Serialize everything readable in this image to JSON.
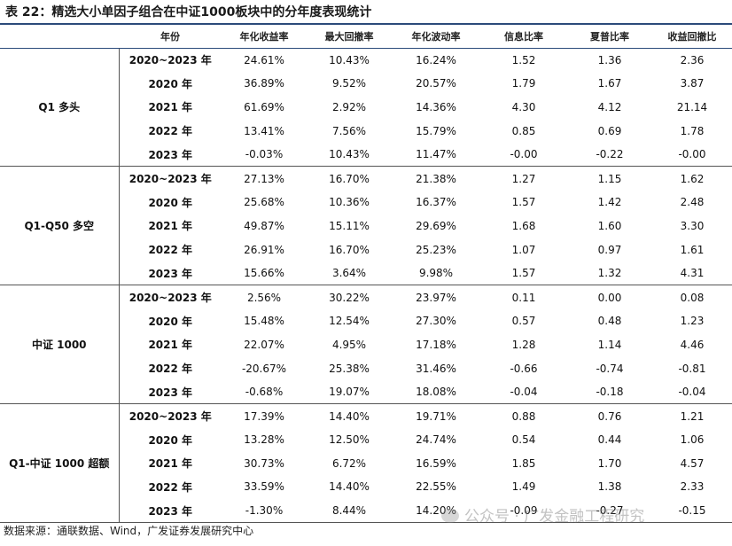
{
  "title": "表 22：精选大小单因子组合在中证1000板块中的分年度表现统计",
  "columns": [
    "",
    "年份",
    "年化收益率",
    "最大回撤率",
    "年化波动率",
    "信息比率",
    "夏普比率",
    "收益回撤比"
  ],
  "groups": [
    {
      "name": "Q1 多头",
      "rows": [
        {
          "year": "2020~2023 年",
          "cells": [
            "24.61%",
            "10.43%",
            "16.24%",
            "1.52",
            "1.36",
            "2.36"
          ]
        },
        {
          "year": "2020 年",
          "cells": [
            "36.89%",
            "9.52%",
            "20.57%",
            "1.79",
            "1.67",
            "3.87"
          ]
        },
        {
          "year": "2021 年",
          "cells": [
            "61.69%",
            "2.92%",
            "14.36%",
            "4.30",
            "4.12",
            "21.14"
          ]
        },
        {
          "year": "2022 年",
          "cells": [
            "13.41%",
            "7.56%",
            "15.79%",
            "0.85",
            "0.69",
            "1.78"
          ]
        },
        {
          "year": "2023 年",
          "cells": [
            "-0.03%",
            "10.43%",
            "11.47%",
            "-0.00",
            "-0.22",
            "-0.00"
          ]
        }
      ]
    },
    {
      "name": "Q1-Q50 多空",
      "rows": [
        {
          "year": "2020~2023 年",
          "cells": [
            "27.13%",
            "16.70%",
            "21.38%",
            "1.27",
            "1.15",
            "1.62"
          ]
        },
        {
          "year": "2020 年",
          "cells": [
            "25.68%",
            "10.36%",
            "16.37%",
            "1.57",
            "1.42",
            "2.48"
          ]
        },
        {
          "year": "2021 年",
          "cells": [
            "49.87%",
            "15.11%",
            "29.69%",
            "1.68",
            "1.60",
            "3.30"
          ]
        },
        {
          "year": "2022 年",
          "cells": [
            "26.91%",
            "16.70%",
            "25.23%",
            "1.07",
            "0.97",
            "1.61"
          ]
        },
        {
          "year": "2023 年",
          "cells": [
            "15.66%",
            "3.64%",
            "9.98%",
            "1.57",
            "1.32",
            "4.31"
          ]
        }
      ]
    },
    {
      "name": "中证 1000",
      "rows": [
        {
          "year": "2020~2023 年",
          "cells": [
            "2.56%",
            "30.22%",
            "23.97%",
            "0.11",
            "0.00",
            "0.08"
          ]
        },
        {
          "year": "2020 年",
          "cells": [
            "15.48%",
            "12.54%",
            "27.30%",
            "0.57",
            "0.48",
            "1.23"
          ]
        },
        {
          "year": "2021 年",
          "cells": [
            "22.07%",
            "4.95%",
            "17.18%",
            "1.28",
            "1.14",
            "4.46"
          ]
        },
        {
          "year": "2022 年",
          "cells": [
            "-20.67%",
            "25.38%",
            "31.46%",
            "-0.66",
            "-0.74",
            "-0.81"
          ]
        },
        {
          "year": "2023 年",
          "cells": [
            "-0.68%",
            "19.07%",
            "18.08%",
            "-0.04",
            "-0.18",
            "-0.04"
          ]
        }
      ]
    },
    {
      "name": "Q1-中证 1000 超额",
      "rows": [
        {
          "year": "2020~2023 年",
          "cells": [
            "17.39%",
            "14.40%",
            "19.71%",
            "0.88",
            "0.76",
            "1.21"
          ]
        },
        {
          "year": "2020 年",
          "cells": [
            "13.28%",
            "12.50%",
            "24.74%",
            "0.54",
            "0.44",
            "1.06"
          ]
        },
        {
          "year": "2021 年",
          "cells": [
            "30.73%",
            "6.72%",
            "16.59%",
            "1.85",
            "1.70",
            "4.57"
          ]
        },
        {
          "year": "2022 年",
          "cells": [
            "33.59%",
            "14.40%",
            "22.55%",
            "1.49",
            "1.38",
            "2.33"
          ]
        },
        {
          "year": "2023 年",
          "cells": [
            "-1.30%",
            "8.44%",
            "14.20%",
            "-0.09",
            "-0.27",
            "-0.15"
          ]
        }
      ]
    }
  ],
  "source": "数据来源：通联数据、Wind，广发证券发展研究中心",
  "watermark": "公众号 · 广发金融工程研究",
  "accent_color": "#2b4a7a"
}
